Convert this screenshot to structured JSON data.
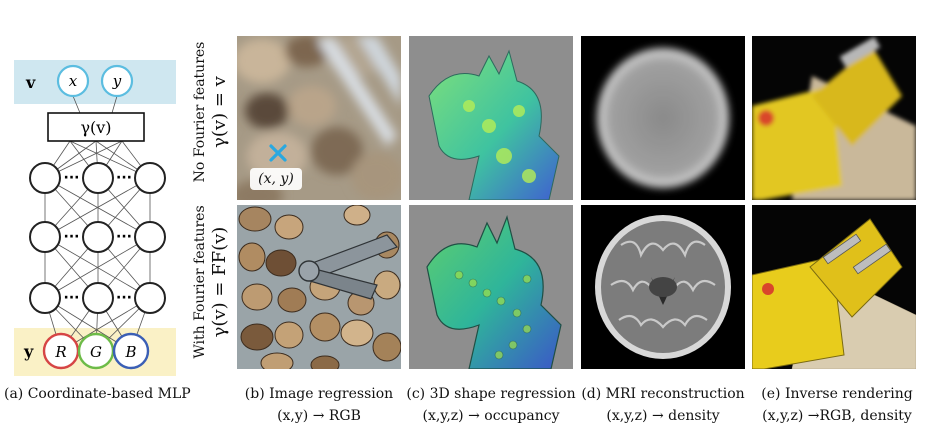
{
  "mlp": {
    "input_label": "v",
    "input_nodes": [
      "x",
      "y"
    ],
    "mapping_box": "γ(v)",
    "output_label": "y",
    "output_nodes": [
      "R",
      "G",
      "B"
    ],
    "ellipsis": "···",
    "caption": "(a) Coordinate-based MLP",
    "colors": {
      "input_band": "#cfe7f0",
      "output_band": "#faf1c6",
      "x_node": "#5bbde0",
      "y_node": "#5bbde0",
      "R_node": "#d64545",
      "G_node": "#6dbb48",
      "B_node": "#3b5fb5"
    }
  },
  "rows": {
    "top_line1": "No Fourier features",
    "top_line2": "γ(v) = v",
    "bottom_line1": "With Fourier features",
    "bottom_line2": "γ(v) = FF(v)"
  },
  "marker": {
    "label": "(x, y)",
    "cross_color": "#29a8e0"
  },
  "columns": [
    {
      "title": "(b) Image regression",
      "mapping": "(x,y) → RGB"
    },
    {
      "title": "(c) 3D shape regression",
      "mapping": "(x,y,z) → occupancy"
    },
    {
      "title": "(d) MRI reconstruction",
      "mapping": "(x,y,z) → density"
    },
    {
      "title": "(e) Inverse rendering",
      "mapping": "(x,y,z) →RGB, density"
    }
  ]
}
